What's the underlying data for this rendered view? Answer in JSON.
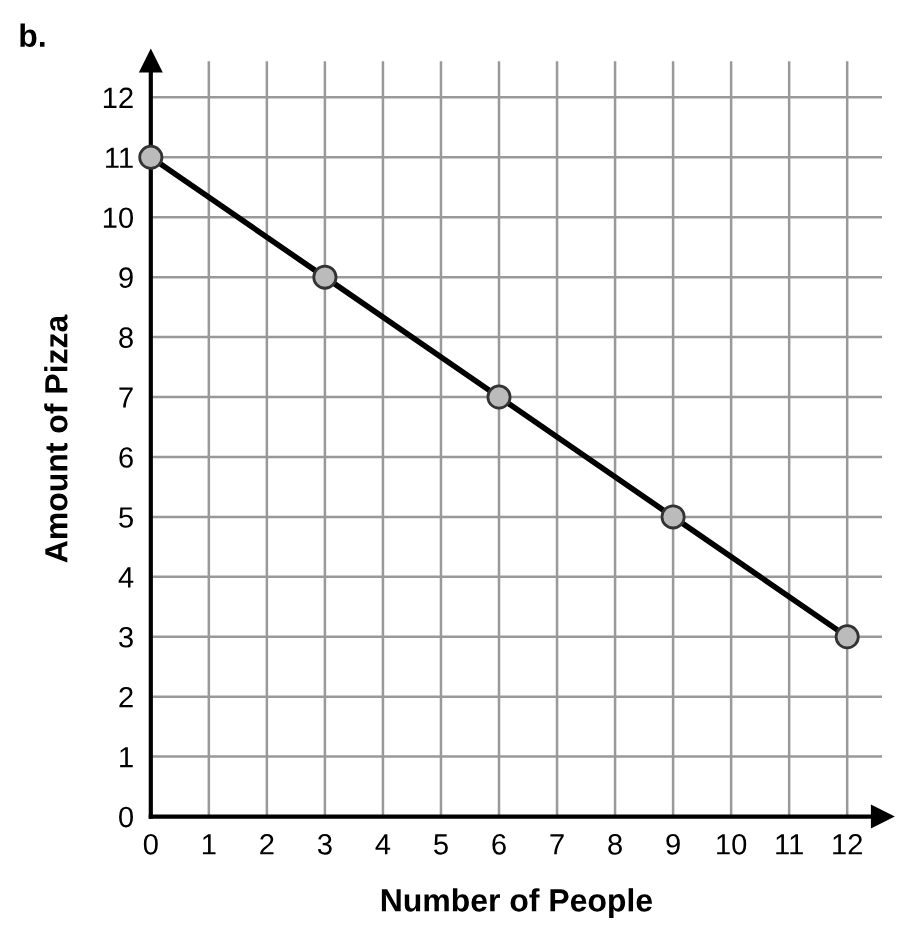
{
  "chart_data": {
    "type": "line",
    "title": "b.",
    "xlabel": "Number of People",
    "ylabel": "Amount of Pizza",
    "x": [
      0,
      3,
      6,
      9,
      12
    ],
    "series": [
      {
        "color": "#000000",
        "values": [
          11,
          9,
          7,
          5,
          3
        ]
      }
    ],
    "xlim": [
      0,
      12.6
    ],
    "ylim": [
      0,
      12.6
    ],
    "xticks": [
      0,
      1,
      2,
      3,
      4,
      5,
      6,
      7,
      8,
      9,
      10,
      11,
      12
    ],
    "yticks": [
      0,
      1,
      2,
      3,
      4,
      5,
      6,
      7,
      8,
      9,
      10,
      11,
      12
    ],
    "grid": true,
    "marker": "circle",
    "line_style": "solid"
  }
}
